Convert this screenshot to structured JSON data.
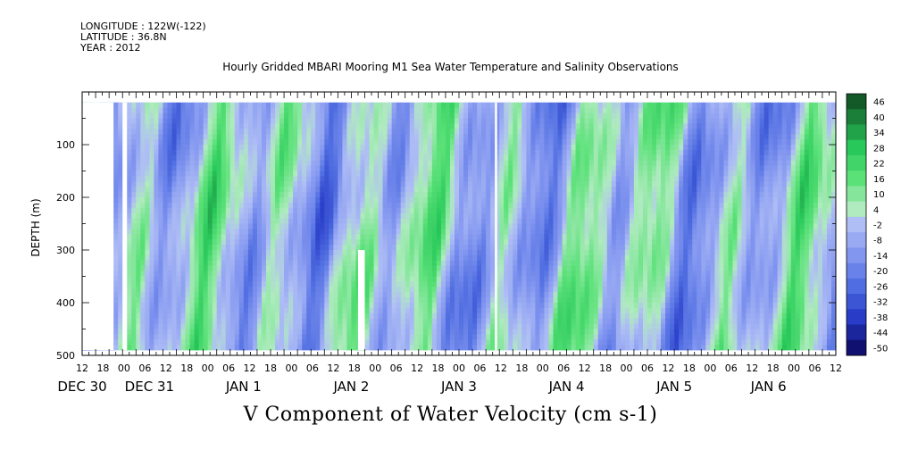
{
  "header": {
    "longitude": "LONGITUDE : 122W(-122)",
    "latitude": "LATITUDE : 36.8N",
    "year": "YEAR : 2012"
  },
  "chart_data": {
    "type": "heatmap",
    "title": "Hourly Gridded MBARI Mooring M1 Sea Water Temperature and Salinity Observations",
    "variable_label": "V Component of Water Velocity (cm s-1)",
    "ylabel": "DEPTH (m)",
    "ylim": [
      500,
      20
    ],
    "y_ticks": [
      100,
      200,
      300,
      400,
      500
    ],
    "x_tick_hours": [
      "12",
      "18",
      "00",
      "06",
      "12",
      "18",
      "00",
      "06",
      "12",
      "18",
      "00",
      "06",
      "12",
      "18",
      "00",
      "06",
      "12",
      "18",
      "00",
      "06",
      "12",
      "18",
      "00",
      "06",
      "12",
      "18",
      "00",
      "06",
      "12",
      "18",
      "00",
      "06",
      "12",
      "18",
      "00",
      "06",
      "12"
    ],
    "x_day_labels": [
      {
        "label": "DEC 30",
        "hour": 12
      },
      {
        "label": "DEC 31",
        "hour": 42
      },
      {
        "label": "JAN  1",
        "hour": 84
      },
      {
        "label": "JAN  2",
        "hour": 132
      },
      {
        "label": "JAN  3",
        "hour": 180
      },
      {
        "label": "JAN  4",
        "hour": 228
      },
      {
        "label": "JAN  5",
        "hour": 276
      },
      {
        "label": "JAN  6",
        "hour": 318
      }
    ],
    "x_range_hours": [
      12,
      348
    ],
    "colorbar": {
      "labels": [
        "46",
        "40",
        "34",
        "28",
        "22",
        "16",
        "10",
        "4",
        "-2",
        "-8",
        "-14",
        "-20",
        "-26",
        "-32",
        "-38",
        "-44",
        "-50"
      ],
      "range": [
        -50,
        50
      ]
    },
    "data_gaps": [
      {
        "hour_start": 6,
        "hour_end": 26,
        "depth_top": 20,
        "depth_bottom": 500
      },
      {
        "hour_start": 30,
        "hour_end": 32,
        "depth_top": 20,
        "depth_bottom": 500
      },
      {
        "hour_start": 196,
        "hour_end": 197,
        "depth_top": 20,
        "depth_bottom": 500
      },
      {
        "hour_start": 135,
        "hour_end": 138,
        "depth_top": 300,
        "depth_bottom": 500
      }
    ]
  }
}
